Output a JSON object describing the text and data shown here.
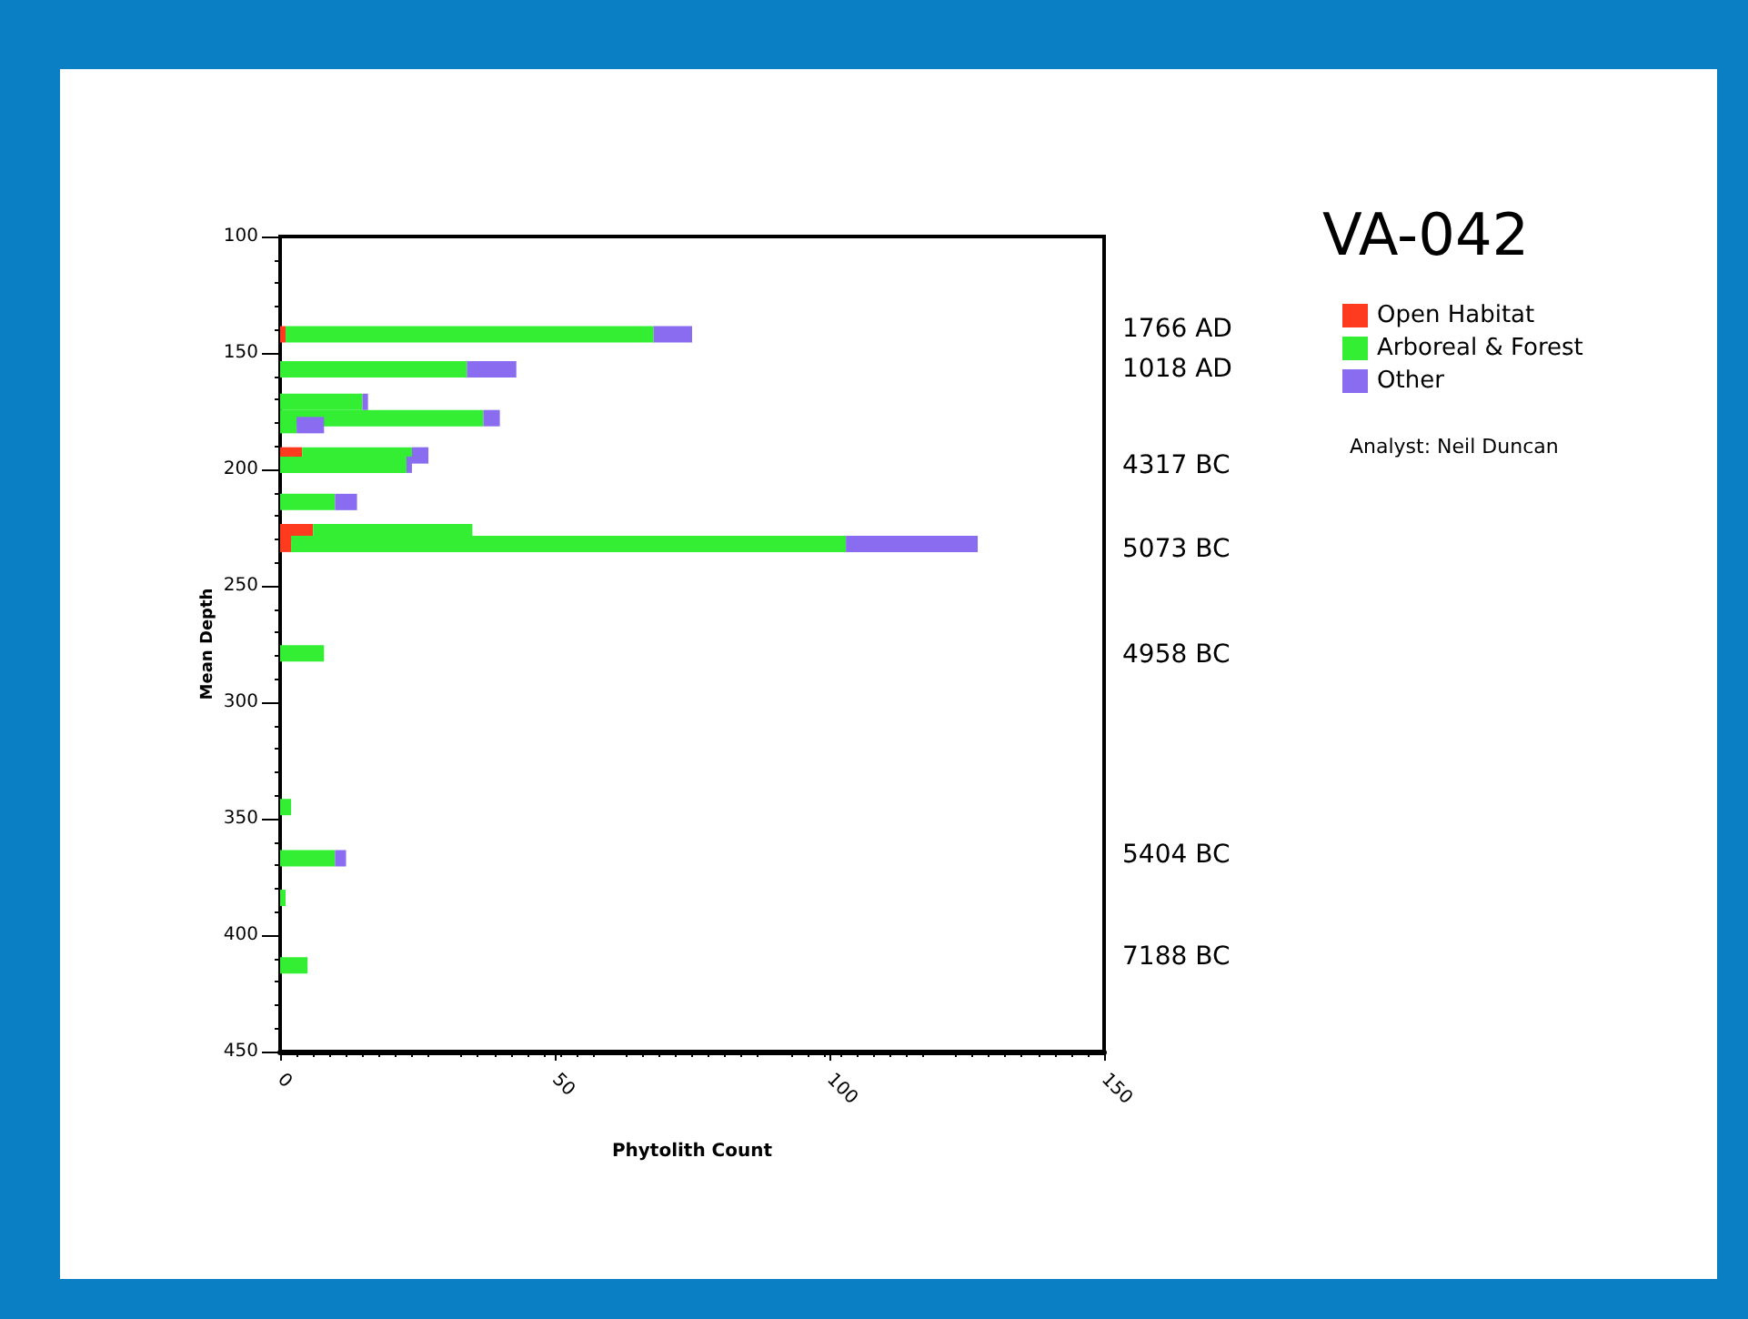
{
  "chart_data": {
    "type": "bar",
    "title": "VA-042",
    "orientation": "horizontal",
    "stacked": true,
    "xlabel": "Phytolith Count",
    "ylabel": "Mean Depth",
    "x": [
      142,
      157,
      171,
      178,
      181,
      194,
      198,
      214,
      227,
      232,
      279,
      345,
      367,
      384,
      413
    ],
    "series": [
      {
        "name": "Open Habitat",
        "color": "#ff3b1f",
        "values": [
          1,
          null,
          null,
          null,
          null,
          4,
          null,
          null,
          6,
          2,
          null,
          null,
          null,
          null,
          null
        ]
      },
      {
        "name": "Arboreal & Forest",
        "color": "#33ee33",
        "values": [
          67,
          34,
          15,
          37,
          3,
          20,
          23,
          10,
          29,
          101,
          8,
          2,
          10,
          1,
          5
        ]
      },
      {
        "name": "Other",
        "color": "#8a6cf0",
        "values": [
          7,
          9,
          1,
          3,
          5,
          3,
          1,
          4,
          null,
          24,
          null,
          null,
          2,
          null,
          null
        ]
      }
    ],
    "xlim": [
      0,
      150
    ],
    "xticks": [
      0,
      50,
      100,
      150
    ],
    "ylim": [
      450,
      100
    ],
    "yticks": [
      100,
      150,
      200,
      250,
      300,
      350,
      400,
      450
    ],
    "grid": false,
    "legend": "top right",
    "annotations": [
      "1766 AD",
      "1018 AD",
      "4317 BC",
      "5073 BC",
      "4958 BC",
      "5404 BC",
      "7188 BC",
      "Analyst: Neil Duncan"
    ]
  }
}
